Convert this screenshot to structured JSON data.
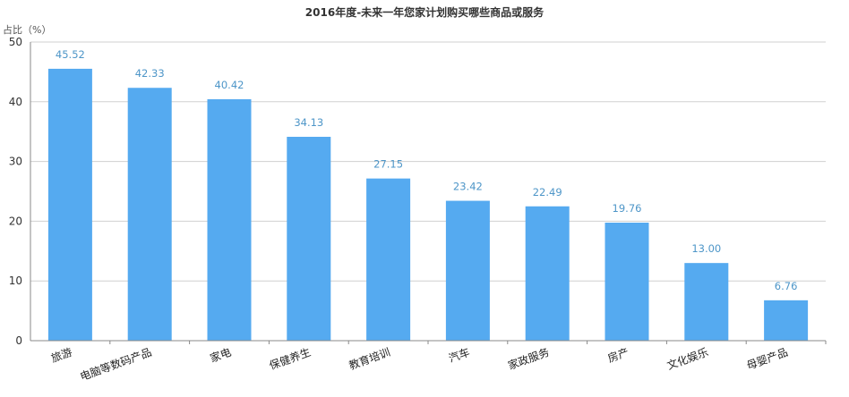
{
  "colors": {
    "bar": "#55AAF0",
    "value_label": "#4E96C8",
    "grid": "#D0D0D0",
    "axis": "#888888"
  },
  "chart_data": {
    "type": "bar",
    "title": "2016年度-未来一年您家计划购买哪些商品或服务",
    "ylabel": "占比（%）",
    "xlabel": "",
    "ylim": [
      0,
      50
    ],
    "yticks": [
      0,
      10,
      20,
      30,
      40,
      50
    ],
    "grid": true,
    "categories": [
      "旅游",
      "电脑等数码产品",
      "家电",
      "保健养生",
      "教育培训",
      "汽车",
      "家政服务",
      "房产",
      "文化娱乐",
      "母婴产品"
    ],
    "values": [
      45.52,
      42.33,
      40.42,
      34.13,
      27.15,
      23.42,
      22.49,
      19.76,
      13.0,
      6.76
    ],
    "value_labels": [
      "45.52",
      "42.33",
      "40.42",
      "34.13",
      "27.15",
      "23.42",
      "22.49",
      "19.76",
      "13.00",
      "6.76"
    ]
  }
}
